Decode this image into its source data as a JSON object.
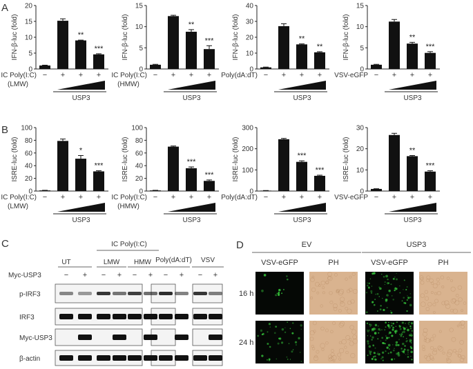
{
  "panels": {
    "a": {
      "letter": "A"
    },
    "b": {
      "letter": "B"
    },
    "c": {
      "letter": "C"
    },
    "d": {
      "letter": "D"
    }
  },
  "common": {
    "minus": "−",
    "plus": "+",
    "usp3": "USP3",
    "sig2": "**",
    "sig3": "***",
    "sig1": "*"
  },
  "chart_data": [
    {
      "id": "a1",
      "type": "bar",
      "ylabel": "IFN-β-luc (fold)",
      "yticks": [
        "0",
        "5",
        "10",
        "15",
        "20"
      ],
      "ylim": [
        0,
        20
      ],
      "values": [
        1.1,
        15.2,
        9.0,
        4.6
      ],
      "errors": [
        0.1,
        0.6,
        0.1,
        0.2
      ],
      "sig": [
        "",
        "",
        "**",
        "***"
      ],
      "stim_label": "IC Poly(I:C)",
      "stim_sub": "(LMW)",
      "treatment": "USP3"
    },
    {
      "id": "a2",
      "type": "bar",
      "ylabel": "IFN-β-luc (fold)",
      "yticks": [
        "0",
        "5",
        "10",
        "15"
      ],
      "ylim": [
        0,
        15
      ],
      "values": [
        1.0,
        12.5,
        8.8,
        4.7
      ],
      "errors": [
        0.1,
        0.2,
        0.5,
        0.8
      ],
      "sig": [
        "",
        "",
        "**",
        "***"
      ],
      "stim_label": "IC Poly(I:C)",
      "stim_sub": "(HMW)",
      "treatment": "USP3"
    },
    {
      "id": "a3",
      "type": "bar",
      "ylabel": "IFN-β-luc (fold)",
      "yticks": [
        "0",
        "10",
        "20",
        "30",
        "40"
      ],
      "ylim": [
        0,
        40
      ],
      "values": [
        1.0,
        27.0,
        15.5,
        10.5
      ],
      "errors": [
        0.2,
        1.5,
        0.3,
        0.4
      ],
      "sig": [
        "",
        "",
        "**",
        "**"
      ],
      "stim_label": "Poly(dA:dT)",
      "stim_sub": "",
      "treatment": "USP3"
    },
    {
      "id": "a4",
      "type": "bar",
      "ylabel": "IFN-β-luc (fold)",
      "yticks": [
        "0",
        "5",
        "10",
        "15"
      ],
      "ylim": [
        0,
        15
      ],
      "values": [
        1.0,
        11.2,
        6.0,
        3.8
      ],
      "errors": [
        0.1,
        0.5,
        0.3,
        0.3
      ],
      "sig": [
        "",
        "",
        "**",
        "***"
      ],
      "stim_label": "VSV-eGFP",
      "stim_sub": "",
      "treatment": "USP3"
    },
    {
      "id": "b1",
      "type": "bar",
      "ylabel": "ISRE-luc (fold)",
      "yticks": [
        "0",
        "20",
        "40",
        "60",
        "80",
        "100"
      ],
      "ylim": [
        0,
        100
      ],
      "values": [
        1.0,
        79.0,
        51.0,
        31.0
      ],
      "errors": [
        0.2,
        3.0,
        5.0,
        1.0
      ],
      "sig": [
        "",
        "",
        "*",
        "***"
      ],
      "stim_label": "IC Poly(I:C)",
      "stim_sub": "(LMW)",
      "treatment": "USP3"
    },
    {
      "id": "b2",
      "type": "bar",
      "ylabel": "ISRE-luc (fold)",
      "yticks": [
        "0",
        "20",
        "40",
        "60",
        "80",
        "100"
      ],
      "ylim": [
        0,
        100
      ],
      "values": [
        1.0,
        70.0,
        36.0,
        16.0
      ],
      "errors": [
        0.2,
        1.0,
        2.0,
        1.5
      ],
      "sig": [
        "",
        "",
        "***",
        "***"
      ],
      "stim_label": "IC Poly(I:C)",
      "stim_sub": "(HMW)",
      "treatment": "USP3"
    },
    {
      "id": "b3",
      "type": "bar",
      "ylabel": "ISRE-luc (fold)",
      "yticks": [
        "0",
        "100",
        "200",
        "300"
      ],
      "ylim": [
        0,
        300
      ],
      "values": [
        2.0,
        245.0,
        138.0,
        72.0
      ],
      "errors": [
        0.5,
        4.0,
        5.0,
        3.0
      ],
      "sig": [
        "",
        "",
        "***",
        "***"
      ],
      "stim_label": "Poly(dA:dT)",
      "stim_sub": "",
      "treatment": "USP3"
    },
    {
      "id": "b4",
      "type": "bar",
      "ylabel": "ISRE-luc (fold)",
      "yticks": [
        "0",
        "10",
        "20",
        "30"
      ],
      "ylim": [
        0,
        30
      ],
      "values": [
        1.0,
        26.5,
        16.5,
        9.2
      ],
      "errors": [
        0.1,
        0.8,
        0.3,
        0.4
      ],
      "sig": [
        "",
        "",
        "**",
        "***"
      ],
      "stim_label": "VSV-eGFP",
      "stim_sub": "",
      "treatment": "USP3"
    }
  ],
  "blot": {
    "ut": "UT",
    "ic": "IC Poly(I:C)",
    "lmw": "LMW",
    "hmw": "HMW",
    "polydadt": "Poly(dA:dT)",
    "vsv": "VSV",
    "myc_usp3_row": "Myc-USP3",
    "rows": [
      "p-IRF3",
      "IRF3",
      "Myc-USP3",
      "β-actin"
    ],
    "row_signal": [
      [
        0.35,
        0.25,
        0.8,
        0.45,
        0.75,
        0.5,
        0.85,
        0.4,
        0.8,
        0.4
      ],
      [
        1,
        1,
        1,
        1,
        1,
        1,
        1,
        1,
        1,
        1
      ],
      [
        0,
        1,
        0,
        1,
        0,
        1,
        0,
        1,
        0,
        1
      ],
      [
        1,
        1,
        1,
        1,
        1,
        1,
        1,
        1,
        1,
        1
      ]
    ]
  },
  "micro": {
    "ev": "EV",
    "usp3": "USP3",
    "cols": [
      "VSV-eGFP",
      "PH",
      "VSV-eGFP",
      "PH"
    ],
    "rows": [
      "16 h",
      "24 h"
    ],
    "gfp_density": [
      [
        0.05,
        0.45
      ],
      [
        0.25,
        1.0
      ]
    ],
    "colors": {
      "gfp": "#35c23a",
      "dark": "#050805",
      "ph": "#d9b38f"
    }
  }
}
